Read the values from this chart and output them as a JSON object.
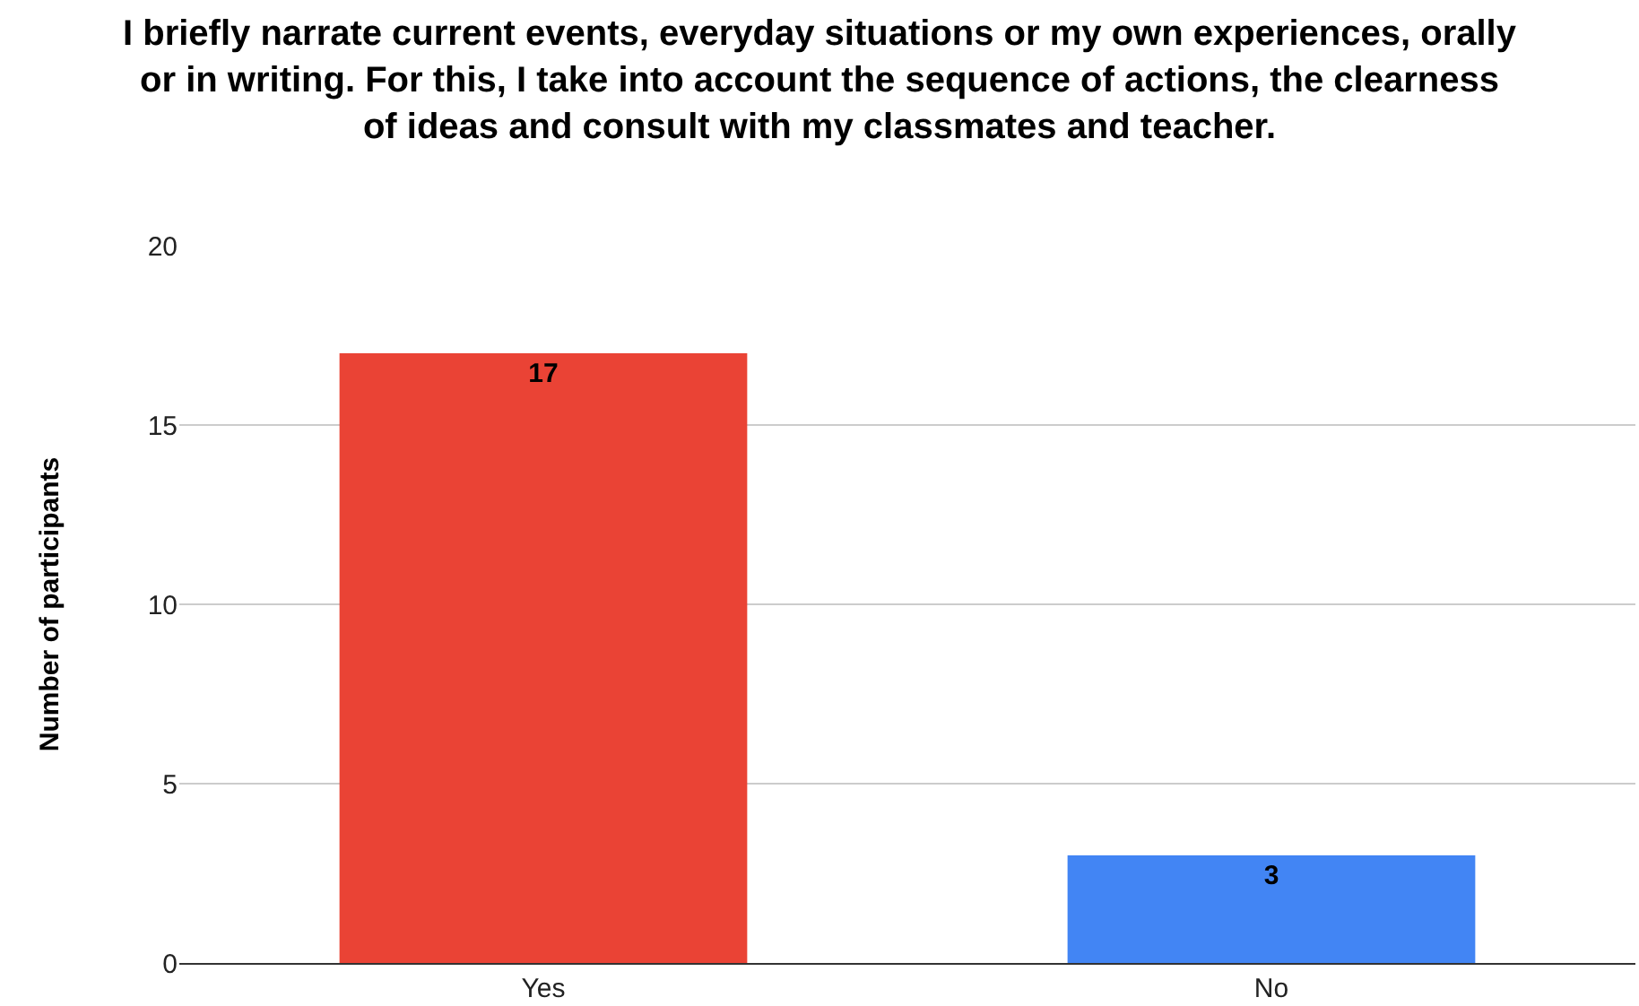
{
  "chart_data": {
    "type": "bar",
    "title": "I briefly narrate current events, everyday situations or my own experiences, orally or in writing. For this, I take into account the sequence of actions, the clearness of ideas and consult with my classmates and teacher.",
    "ylabel": "Number of participants",
    "categories": [
      "Yes",
      "No"
    ],
    "values": [
      17,
      3
    ],
    "colors": [
      "#ea4335",
      "#4285f4"
    ],
    "ylim": [
      0,
      20
    ],
    "yticks": [
      0,
      5,
      10,
      15,
      20
    ],
    "grid": "y",
    "data_labels": true
  }
}
